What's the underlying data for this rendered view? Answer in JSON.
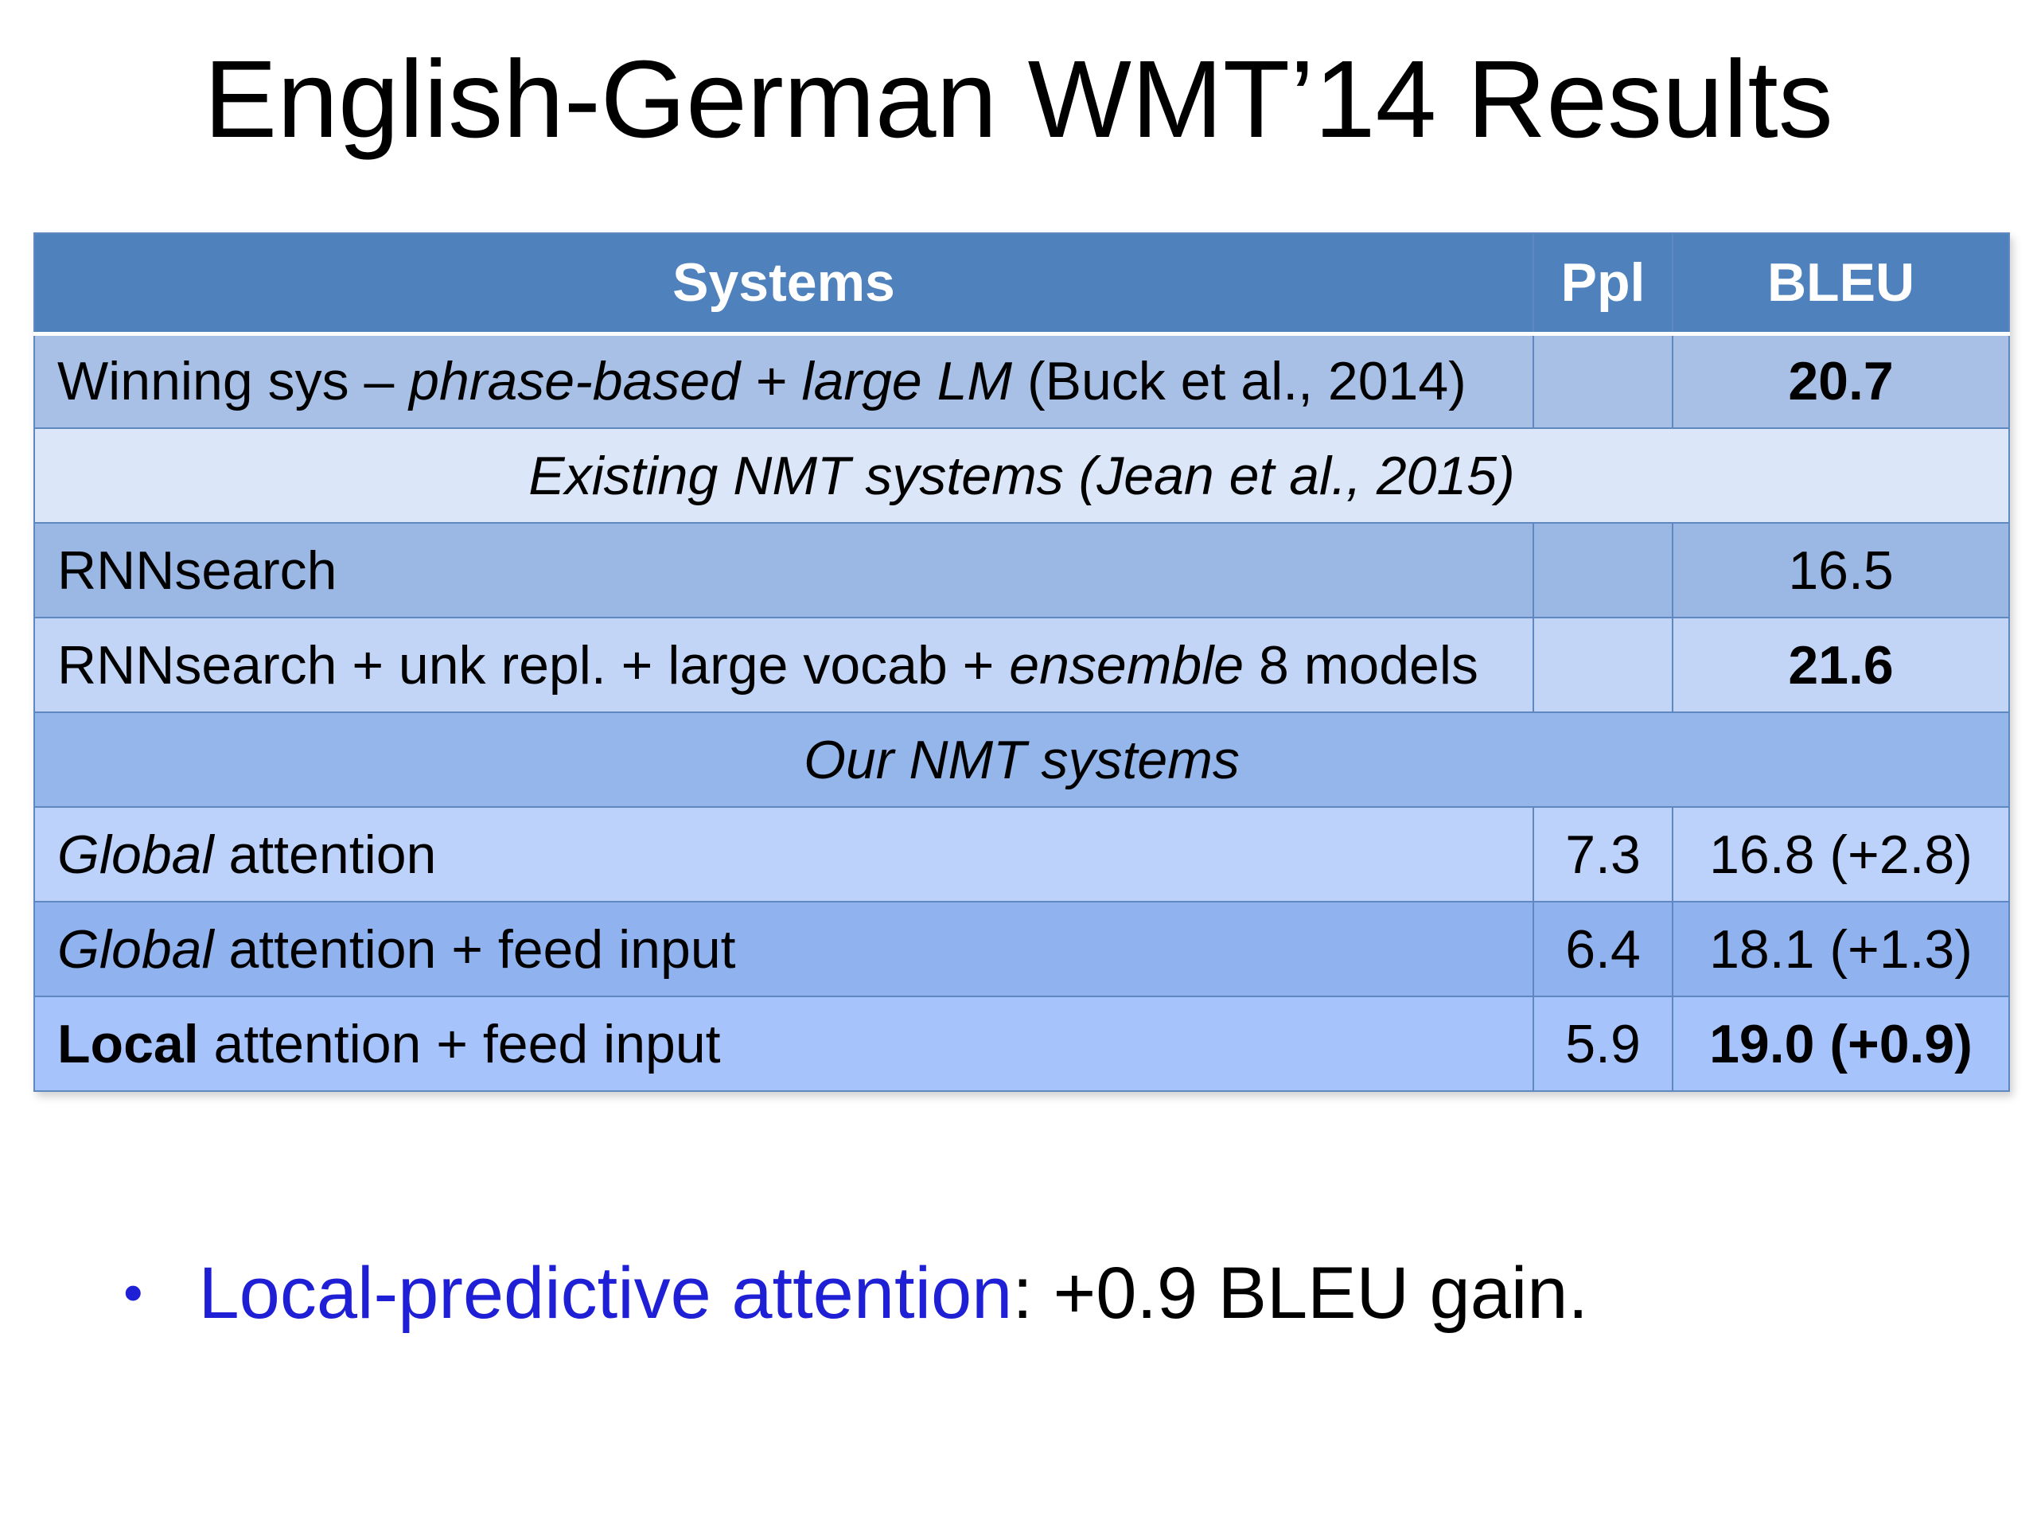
{
  "title": "English-German WMT’14 Results",
  "table": {
    "headers": {
      "systems": "Systems",
      "ppl": "Ppl",
      "bleu": "BLEU"
    },
    "rows": {
      "winning": {
        "label_plain": "Winning sys – ",
        "label_italic": "phrase-based + large LM",
        "label_tail": " (Buck et al., 2014)",
        "ppl": "",
        "bleu": "20.7"
      },
      "existing_section": "Existing NMT systems (Jean et al., 2015)",
      "rnnsearch": {
        "label": "RNNsearch",
        "ppl": "",
        "bleu": "16.5"
      },
      "rnnsearch_ensemble": {
        "label_plain": "RNNsearch + unk repl. + large vocab + ",
        "label_italic": "ensemble",
        "label_tail": " 8 models",
        "ppl": "",
        "bleu": "21.6"
      },
      "our_section": "Our NMT systems",
      "global": {
        "label_italic": "Global",
        "label_tail": " attention",
        "ppl": "7.3",
        "bleu": "16.8 (+2.8)"
      },
      "global_feed": {
        "label_italic": "Global",
        "label_tail": " attention + feed input",
        "ppl": "6.4",
        "bleu": "18.1 (+1.3)"
      },
      "local_feed": {
        "label_bold": "Local",
        "label_tail": " attention + feed input",
        "ppl": "5.9",
        "bleu": "19.0 (+0.9)"
      }
    }
  },
  "bullet": {
    "marker": "•",
    "highlight": "Local-predictive attention",
    "rest": ": +0.9 BLEU gain."
  },
  "colors": {
    "header_bg": "#4f81bd",
    "highlight_text": "#1f1fd6"
  }
}
